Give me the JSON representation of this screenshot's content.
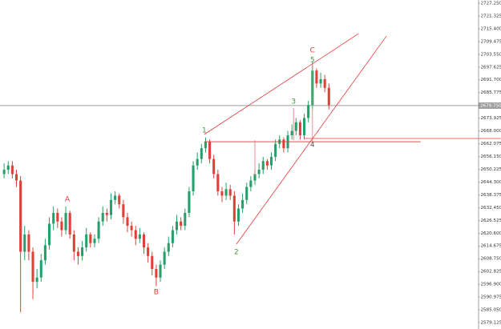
{
  "chart_data": {
    "type": "candlestick",
    "up_color": "#26a06a",
    "down_color": "#e0403a",
    "xlim": [
      -1,
      115.4
    ],
    "ylim": [
      2576.15,
      2728.73
    ],
    "yticks": [
      {
        "value": 2727.25,
        "label": "2727.250"
      },
      {
        "value": 2721.325,
        "label": "2721.325"
      },
      {
        "value": 2715.4,
        "label": "2715.400"
      },
      {
        "value": 2709.475,
        "label": "2709.475"
      },
      {
        "value": 2703.55,
        "label": "2703.550"
      },
      {
        "value": 2697.625,
        "label": "2697.625"
      },
      {
        "value": 2691.7,
        "label": "2691.700"
      },
      {
        "value": 2685.775,
        "label": "2685.775"
      },
      {
        "value": 2673.925,
        "label": "2673.925"
      },
      {
        "value": 2668,
        "label": "2668.000"
      },
      {
        "value": 2662.075,
        "label": "2662.075"
      },
      {
        "value": 2656.15,
        "label": "2656.150"
      },
      {
        "value": 2650.225,
        "label": "2650.225"
      },
      {
        "value": 2644.3,
        "label": "2644.300"
      },
      {
        "value": 2638.375,
        "label": "2638.375"
      },
      {
        "value": 2632.45,
        "label": "2632.450"
      },
      {
        "value": 2626.525,
        "label": "2626.525"
      },
      {
        "value": 2620.6,
        "label": "2620.600"
      },
      {
        "value": 2614.675,
        "label": "2614.675"
      },
      {
        "value": 2608.75,
        "label": "2608.750"
      },
      {
        "value": 2602.825,
        "label": "2602.825"
      },
      {
        "value": 2596.9,
        "label": "2596.900"
      },
      {
        "value": 2590.975,
        "label": "2590.975"
      },
      {
        "value": 2585.05,
        "label": "2585.050"
      },
      {
        "value": 2579.125,
        "label": "2579.125"
      }
    ],
    "current_price": {
      "value": 2679.75,
      "label": "2679.750",
      "color": "#9e9e9e"
    },
    "open": [
      2648,
      2650,
      2652,
      2648,
      2645,
      2612,
      2620,
      2612,
      2598,
      2600,
      2608,
      2615,
      2625,
      2630,
      2626,
      2622,
      2630,
      2620,
      2612,
      2610,
      2614,
      2620,
      2616,
      2618,
      2626,
      2630,
      2629,
      2636,
      2638,
      2634,
      2628,
      2624,
      2622,
      2618,
      2620,
      2614,
      2610,
      2604,
      2600,
      2606,
      2612,
      2616,
      2622,
      2626,
      2624,
      2630,
      2640,
      2652,
      2655,
      2660,
      2663,
      2655,
      2648,
      2640,
      2638,
      2641,
      2638,
      2626,
      2632,
      2636,
      2642,
      2645,
      2648,
      2650,
      2654,
      2652,
      2656,
      2662,
      2664,
      2660,
      2666,
      2668,
      2672,
      2666,
      2674,
      2680,
      2696,
      2690,
      2692,
      2688
    ],
    "high": [
      2653,
      2654,
      2654,
      2650,
      2647,
      2624,
      2622,
      2614,
      2604,
      2611,
      2618,
      2628,
      2633,
      2632,
      2628,
      2633,
      2631,
      2622,
      2614,
      2617,
      2623,
      2621,
      2620,
      2628,
      2633,
      2632,
      2639,
      2640,
      2639,
      2636,
      2630,
      2626,
      2624,
      2623,
      2621,
      2616,
      2612,
      2606,
      2608,
      2614,
      2619,
      2624,
      2629,
      2628,
      2632,
      2642,
      2654,
      2658,
      2662,
      2665,
      2664,
      2657,
      2650,
      2642,
      2644,
      2643,
      2640,
      2634,
      2639,
      2644,
      2647,
      2650,
      2653,
      2656,
      2655,
      2658,
      2664,
      2666,
      2665,
      2668,
      2671,
      2674,
      2673,
      2676,
      2682,
      2700,
      2697,
      2695,
      2694,
      2690
    ],
    "low": [
      2646,
      2648,
      2646,
      2642,
      2584,
      2608,
      2608,
      2590,
      2595,
      2598,
      2606,
      2613,
      2622,
      2623,
      2619,
      2620,
      2618,
      2608,
      2606,
      2608,
      2612,
      2614,
      2614,
      2616,
      2624,
      2626,
      2627,
      2634,
      2632,
      2625,
      2621,
      2619,
      2615,
      2616,
      2611,
      2607,
      2601,
      2596,
      2598,
      2604,
      2610,
      2614,
      2620,
      2622,
      2622,
      2628,
      2638,
      2650,
      2653,
      2658,
      2653,
      2646,
      2638,
      2635,
      2636,
      2636,
      2620,
      2624,
      2630,
      2634,
      2640,
      2643,
      2646,
      2648,
      2650,
      2650,
      2654,
      2660,
      2658,
      2658,
      2664,
      2666,
      2664,
      2664,
      2672,
      2678,
      2688,
      2688,
      2686,
      2678
    ],
    "close": [
      2650,
      2652,
      2648,
      2645,
      2612,
      2620,
      2612,
      2598,
      2600,
      2608,
      2615,
      2625,
      2630,
      2626,
      2622,
      2630,
      2620,
      2612,
      2610,
      2614,
      2620,
      2616,
      2618,
      2626,
      2630,
      2629,
      2636,
      2638,
      2634,
      2628,
      2624,
      2622,
      2618,
      2620,
      2614,
      2610,
      2604,
      2600,
      2606,
      2612,
      2616,
      2622,
      2626,
      2624,
      2630,
      2640,
      2652,
      2655,
      2660,
      2663,
      2655,
      2648,
      2640,
      2638,
      2641,
      2638,
      2626,
      2632,
      2636,
      2642,
      2645,
      2648,
      2650,
      2654,
      2652,
      2656,
      2662,
      2664,
      2660,
      2666,
      2668,
      2672,
      2666,
      2674,
      2680,
      2696,
      2690,
      2692,
      2688,
      2680
    ],
    "lines": [
      {
        "x": [
          48.7,
          86.2
        ],
        "y": [
          2666.4,
          2713.1
        ],
        "color": "#e53935"
      },
      {
        "x": [
          56.5,
          93.0
        ],
        "y": [
          2615.5,
          2712.0
        ],
        "color": "#e53935"
      },
      {
        "x": [
          48.7,
          101.3
        ],
        "y": [
          2663.0,
          2663.0
        ],
        "color": "#e53935"
      },
      {
        "x": [
          73.1,
          120.8
        ],
        "y": [
          2664.5,
          2664.5
        ],
        "color": "#e53935"
      },
      {
        "x": [
          61.0,
          61.0
        ],
        "y": [
          2647.1,
          2663.7
        ],
        "color": "#e57373"
      },
      {
        "x": [
          70.4,
          70.4
        ],
        "y": [
          2678.6,
          2663.7
        ],
        "color": "#e57373"
      },
      {
        "x": [
          75.0,
          75.0
        ],
        "y": [
          2699.0,
          2662.6
        ],
        "color": "#e57373"
      }
    ],
    "annotations": [
      {
        "text": "A",
        "x": 15.4,
        "y": 2636.3,
        "color": "#e53935"
      },
      {
        "text": "B",
        "x": 37.0,
        "y": 2593.2,
        "color": "#e53935"
      },
      {
        "text": "1",
        "x": 48.7,
        "y": 2668.2,
        "color": "#3c9a3c"
      },
      {
        "text": "2",
        "x": 56.5,
        "y": 2611.8,
        "color": "#3c9a3c"
      },
      {
        "text": "3",
        "x": 70.4,
        "y": 2681.6,
        "color": "#3c9a3c"
      },
      {
        "text": "4",
        "x": 75.0,
        "y": 2661.5,
        "color": "#555555"
      },
      {
        "text": "5",
        "x": 75.0,
        "y": 2700.9,
        "color": "#3c9a3c"
      },
      {
        "text": "C",
        "x": 75.0,
        "y": 2705.3,
        "color": "#e53935"
      }
    ]
  }
}
